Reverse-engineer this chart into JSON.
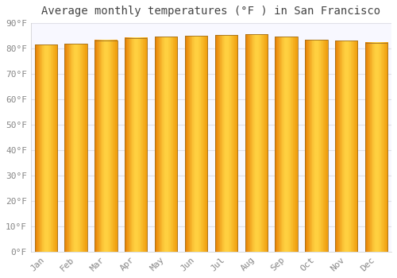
{
  "title": "Average monthly temperatures (°F ) in San Francisco",
  "months": [
    "Jan",
    "Feb",
    "Mar",
    "Apr",
    "May",
    "Jun",
    "Jul",
    "Aug",
    "Sep",
    "Oct",
    "Nov",
    "Dec"
  ],
  "values": [
    81.5,
    81.8,
    83.2,
    84.2,
    84.7,
    85.0,
    85.3,
    85.6,
    84.7,
    83.3,
    83.1,
    82.3
  ],
  "bar_color_left": "#E8860A",
  "bar_color_center": "#FFD040",
  "bar_color_right": "#F0A010",
  "bar_edge_color": "#A07020",
  "background_color": "#FFFFFF",
  "plot_bg_color": "#F8F8FF",
  "grid_color": "#E0E0E8",
  "text_color": "#888888",
  "title_color": "#444444",
  "ylim": [
    0,
    90
  ],
  "yticks": [
    0,
    10,
    20,
    30,
    40,
    50,
    60,
    70,
    80,
    90
  ],
  "ytick_labels": [
    "0°F",
    "10°F",
    "20°F",
    "30°F",
    "40°F",
    "50°F",
    "60°F",
    "70°F",
    "80°F",
    "90°F"
  ],
  "title_fontsize": 10,
  "tick_fontsize": 8
}
